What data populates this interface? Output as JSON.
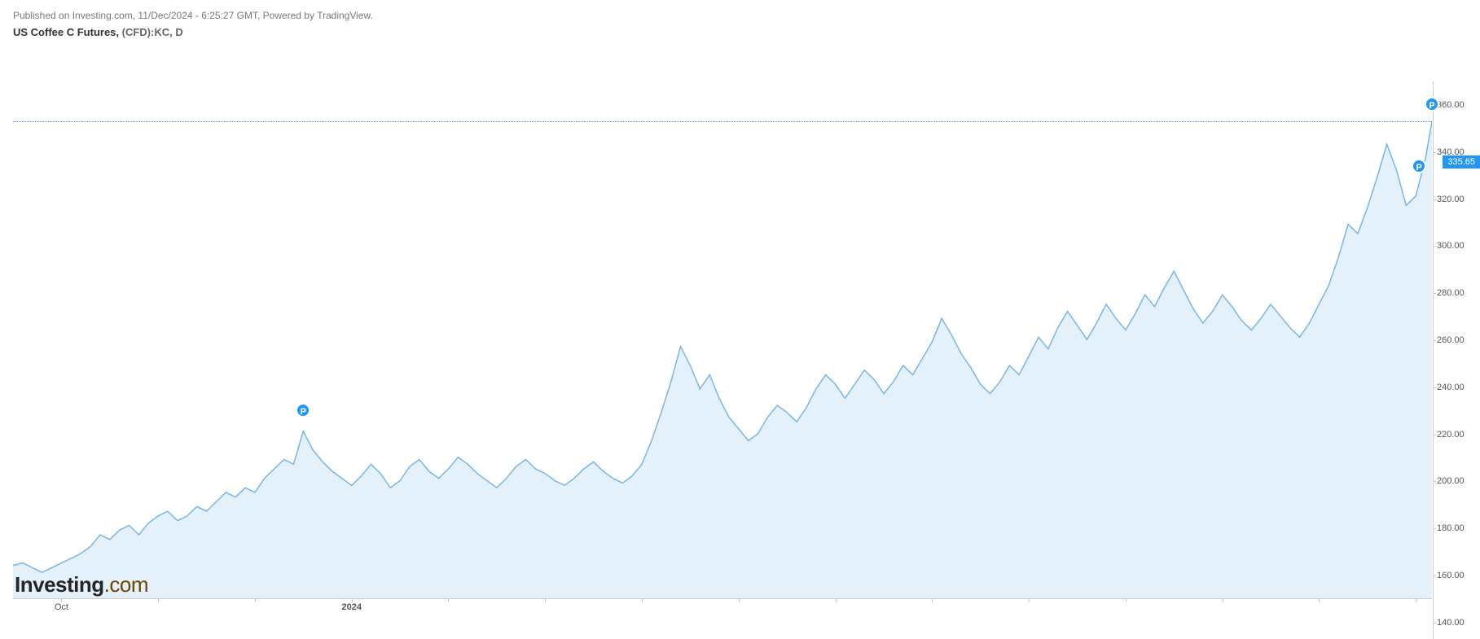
{
  "header": {
    "published_text": "Published on Investing.com, 11/Dec/2024 - 6:25:27 GMT, Powered by TradingView."
  },
  "subtitle": {
    "instrument": "US Coffee C Futures,",
    "ticker": "(CFD):KC,",
    "interval": "D"
  },
  "chart": {
    "type": "area",
    "line_color": "#77b6e6",
    "fill_color": "#e4f0fa",
    "fill_opacity": 1.0,
    "background_color": "#ffffff",
    "axis_color": "#cccccc",
    "text_color": "#555555",
    "ylim": [
      133,
      370
    ],
    "ytick_step": 20,
    "yticks": [
      140,
      160,
      180,
      200,
      220,
      240,
      260,
      280,
      300,
      320,
      340,
      360
    ],
    "xlim_days": [
      0,
      440
    ],
    "xticks": [
      {
        "pos": 15,
        "label": "Oct",
        "bold": false
      },
      {
        "pos": 45,
        "label": "",
        "bold": false
      },
      {
        "pos": 75,
        "label": "",
        "bold": false
      },
      {
        "pos": 105,
        "label": "2024",
        "bold": true
      },
      {
        "pos": 135,
        "label": "",
        "bold": false
      },
      {
        "pos": 165,
        "label": "",
        "bold": false
      },
      {
        "pos": 195,
        "label": "",
        "bold": false
      },
      {
        "pos": 225,
        "label": "",
        "bold": false
      },
      {
        "pos": 255,
        "label": "",
        "bold": false
      },
      {
        "pos": 285,
        "label": "",
        "bold": false
      },
      {
        "pos": 315,
        "label": "",
        "bold": false
      },
      {
        "pos": 345,
        "label": "",
        "bold": false
      },
      {
        "pos": 375,
        "label": "",
        "bold": false
      },
      {
        "pos": 405,
        "label": "",
        "bold": false
      },
      {
        "pos": 435,
        "label": "",
        "bold": false
      }
    ],
    "current_price": 335.65,
    "current_price_label": "335.65",
    "p_markers": [
      {
        "x": 90,
        "y": 208
      },
      {
        "x": 436,
        "y": 312
      },
      {
        "x": 440,
        "y": 338
      }
    ],
    "series": [
      [
        0,
        147
      ],
      [
        3,
        148
      ],
      [
        6,
        146
      ],
      [
        9,
        144
      ],
      [
        12,
        146
      ],
      [
        15,
        148
      ],
      [
        18,
        150
      ],
      [
        21,
        152
      ],
      [
        24,
        155
      ],
      [
        27,
        160
      ],
      [
        30,
        158
      ],
      [
        33,
        162
      ],
      [
        36,
        164
      ],
      [
        39,
        160
      ],
      [
        42,
        165
      ],
      [
        45,
        168
      ],
      [
        48,
        170
      ],
      [
        51,
        166
      ],
      [
        54,
        168
      ],
      [
        57,
        172
      ],
      [
        60,
        170
      ],
      [
        63,
        174
      ],
      [
        66,
        178
      ],
      [
        69,
        176
      ],
      [
        72,
        180
      ],
      [
        75,
        178
      ],
      [
        78,
        184
      ],
      [
        81,
        188
      ],
      [
        84,
        192
      ],
      [
        87,
        190
      ],
      [
        90,
        204
      ],
      [
        93,
        196
      ],
      [
        96,
        191
      ],
      [
        99,
        187
      ],
      [
        102,
        184
      ],
      [
        105,
        181
      ],
      [
        108,
        185
      ],
      [
        111,
        190
      ],
      [
        114,
        186
      ],
      [
        117,
        180
      ],
      [
        120,
        183
      ],
      [
        123,
        189
      ],
      [
        126,
        192
      ],
      [
        129,
        187
      ],
      [
        132,
        184
      ],
      [
        135,
        188
      ],
      [
        138,
        193
      ],
      [
        141,
        190
      ],
      [
        144,
        186
      ],
      [
        147,
        183
      ],
      [
        150,
        180
      ],
      [
        153,
        184
      ],
      [
        156,
        189
      ],
      [
        159,
        192
      ],
      [
        162,
        188
      ],
      [
        165,
        186
      ],
      [
        168,
        183
      ],
      [
        171,
        181
      ],
      [
        174,
        184
      ],
      [
        177,
        188
      ],
      [
        180,
        191
      ],
      [
        183,
        187
      ],
      [
        186,
        184
      ],
      [
        189,
        182
      ],
      [
        192,
        185
      ],
      [
        195,
        190
      ],
      [
        198,
        200
      ],
      [
        201,
        212
      ],
      [
        204,
        225
      ],
      [
        207,
        240
      ],
      [
        210,
        232
      ],
      [
        213,
        222
      ],
      [
        216,
        228
      ],
      [
        219,
        218
      ],
      [
        222,
        210
      ],
      [
        225,
        205
      ],
      [
        228,
        200
      ],
      [
        231,
        203
      ],
      [
        234,
        210
      ],
      [
        237,
        215
      ],
      [
        240,
        212
      ],
      [
        243,
        208
      ],
      [
        246,
        214
      ],
      [
        249,
        222
      ],
      [
        252,
        228
      ],
      [
        255,
        224
      ],
      [
        258,
        218
      ],
      [
        261,
        224
      ],
      [
        264,
        230
      ],
      [
        267,
        226
      ],
      [
        270,
        220
      ],
      [
        273,
        225
      ],
      [
        276,
        232
      ],
      [
        279,
        228
      ],
      [
        282,
        235
      ],
      [
        285,
        242
      ],
      [
        288,
        252
      ],
      [
        291,
        245
      ],
      [
        294,
        237
      ],
      [
        297,
        231
      ],
      [
        300,
        224
      ],
      [
        303,
        220
      ],
      [
        306,
        225
      ],
      [
        309,
        232
      ],
      [
        312,
        228
      ],
      [
        315,
        236
      ],
      [
        318,
        244
      ],
      [
        321,
        239
      ],
      [
        324,
        248
      ],
      [
        327,
        255
      ],
      [
        330,
        249
      ],
      [
        333,
        243
      ],
      [
        336,
        250
      ],
      [
        339,
        258
      ],
      [
        342,
        252
      ],
      [
        345,
        247
      ],
      [
        348,
        254
      ],
      [
        351,
        262
      ],
      [
        354,
        257
      ],
      [
        357,
        265
      ],
      [
        360,
        272
      ],
      [
        363,
        264
      ],
      [
        366,
        256
      ],
      [
        369,
        250
      ],
      [
        372,
        255
      ],
      [
        375,
        262
      ],
      [
        378,
        257
      ],
      [
        381,
        251
      ],
      [
        384,
        247
      ],
      [
        387,
        252
      ],
      [
        390,
        258
      ],
      [
        393,
        253
      ],
      [
        396,
        248
      ],
      [
        399,
        244
      ],
      [
        402,
        250
      ],
      [
        405,
        258
      ],
      [
        408,
        266
      ],
      [
        411,
        278
      ],
      [
        414,
        292
      ],
      [
        417,
        288
      ],
      [
        420,
        299
      ],
      [
        423,
        312
      ],
      [
        426,
        326
      ],
      [
        429,
        315
      ],
      [
        432,
        300
      ],
      [
        435,
        304
      ],
      [
        438,
        320
      ],
      [
        440,
        335.65
      ]
    ]
  },
  "logo": {
    "brand": "Investing",
    "tld": ".com"
  }
}
